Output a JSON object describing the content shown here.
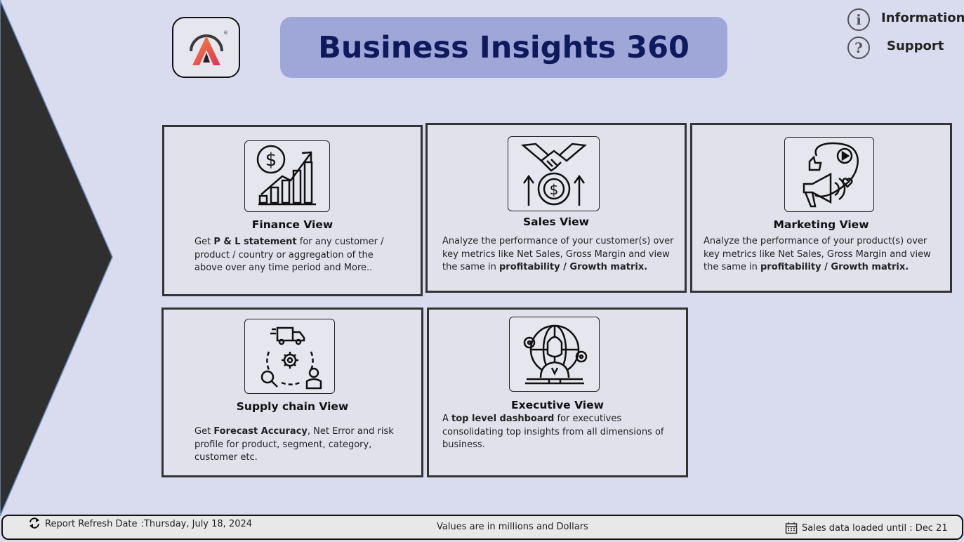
{
  "header": {
    "title": "Business Insights 360",
    "logo_mark": "®",
    "information_label": "Information",
    "support_label": "Support"
  },
  "cards": {
    "finance": {
      "title": "Finance View",
      "desc_1": "Get ",
      "desc_bold": "P & L statement",
      "desc_2": " for any customer / product / country or aggregation of the above over any time period and More.."
    },
    "sales": {
      "title": "Sales View",
      "desc_1": "Analyze the performance of your customer(s) over key metrics like Net Sales, Gross Margin and view the same in ",
      "desc_bold": "profitability / Growth matrix."
    },
    "marketing": {
      "title": "Marketing View",
      "desc_1": "Analyze the performance of your product(s) over key metrics like Net Sales, Gross Margin and view the same in ",
      "desc_bold": "profitability / Growth matrix."
    },
    "supply": {
      "title": "Supply chain View",
      "desc_1": "Get ",
      "desc_bold": "Forecast Accuracy",
      "desc_2": ", Net Error and risk profile for product, segment, category, customer etc."
    },
    "executive": {
      "title": "Executive View",
      "desc_1": "A ",
      "desc_bold": "top level dashboard",
      "desc_2": " for executives consolidating top insights from all dimensions of business."
    }
  },
  "footer": {
    "refresh_label": "Report Refresh Date",
    "refresh_value": " :Thursday, July 18, 2024",
    "units_note": "Values are in millions and Dollars",
    "sales_loaded": "Sales data loaded until : Dec 21"
  },
  "colors": {
    "background": "#d8dcee",
    "title_bar": "#9fa6d8",
    "title_text": "#0f1a5c",
    "arrow": "#2f2f2f",
    "logo_gradient": [
      "#f0703a",
      "#e0305a"
    ]
  },
  "icons": {
    "finance": "finance-growth-icon",
    "sales": "handshake-money-icon",
    "marketing": "megaphone-social-icon",
    "supply": "supply-chain-icon",
    "executive": "executive-globe-icon",
    "refresh": "refresh-icon",
    "calendar": "calendar-icon",
    "info": "info-icon",
    "help": "help-icon"
  }
}
